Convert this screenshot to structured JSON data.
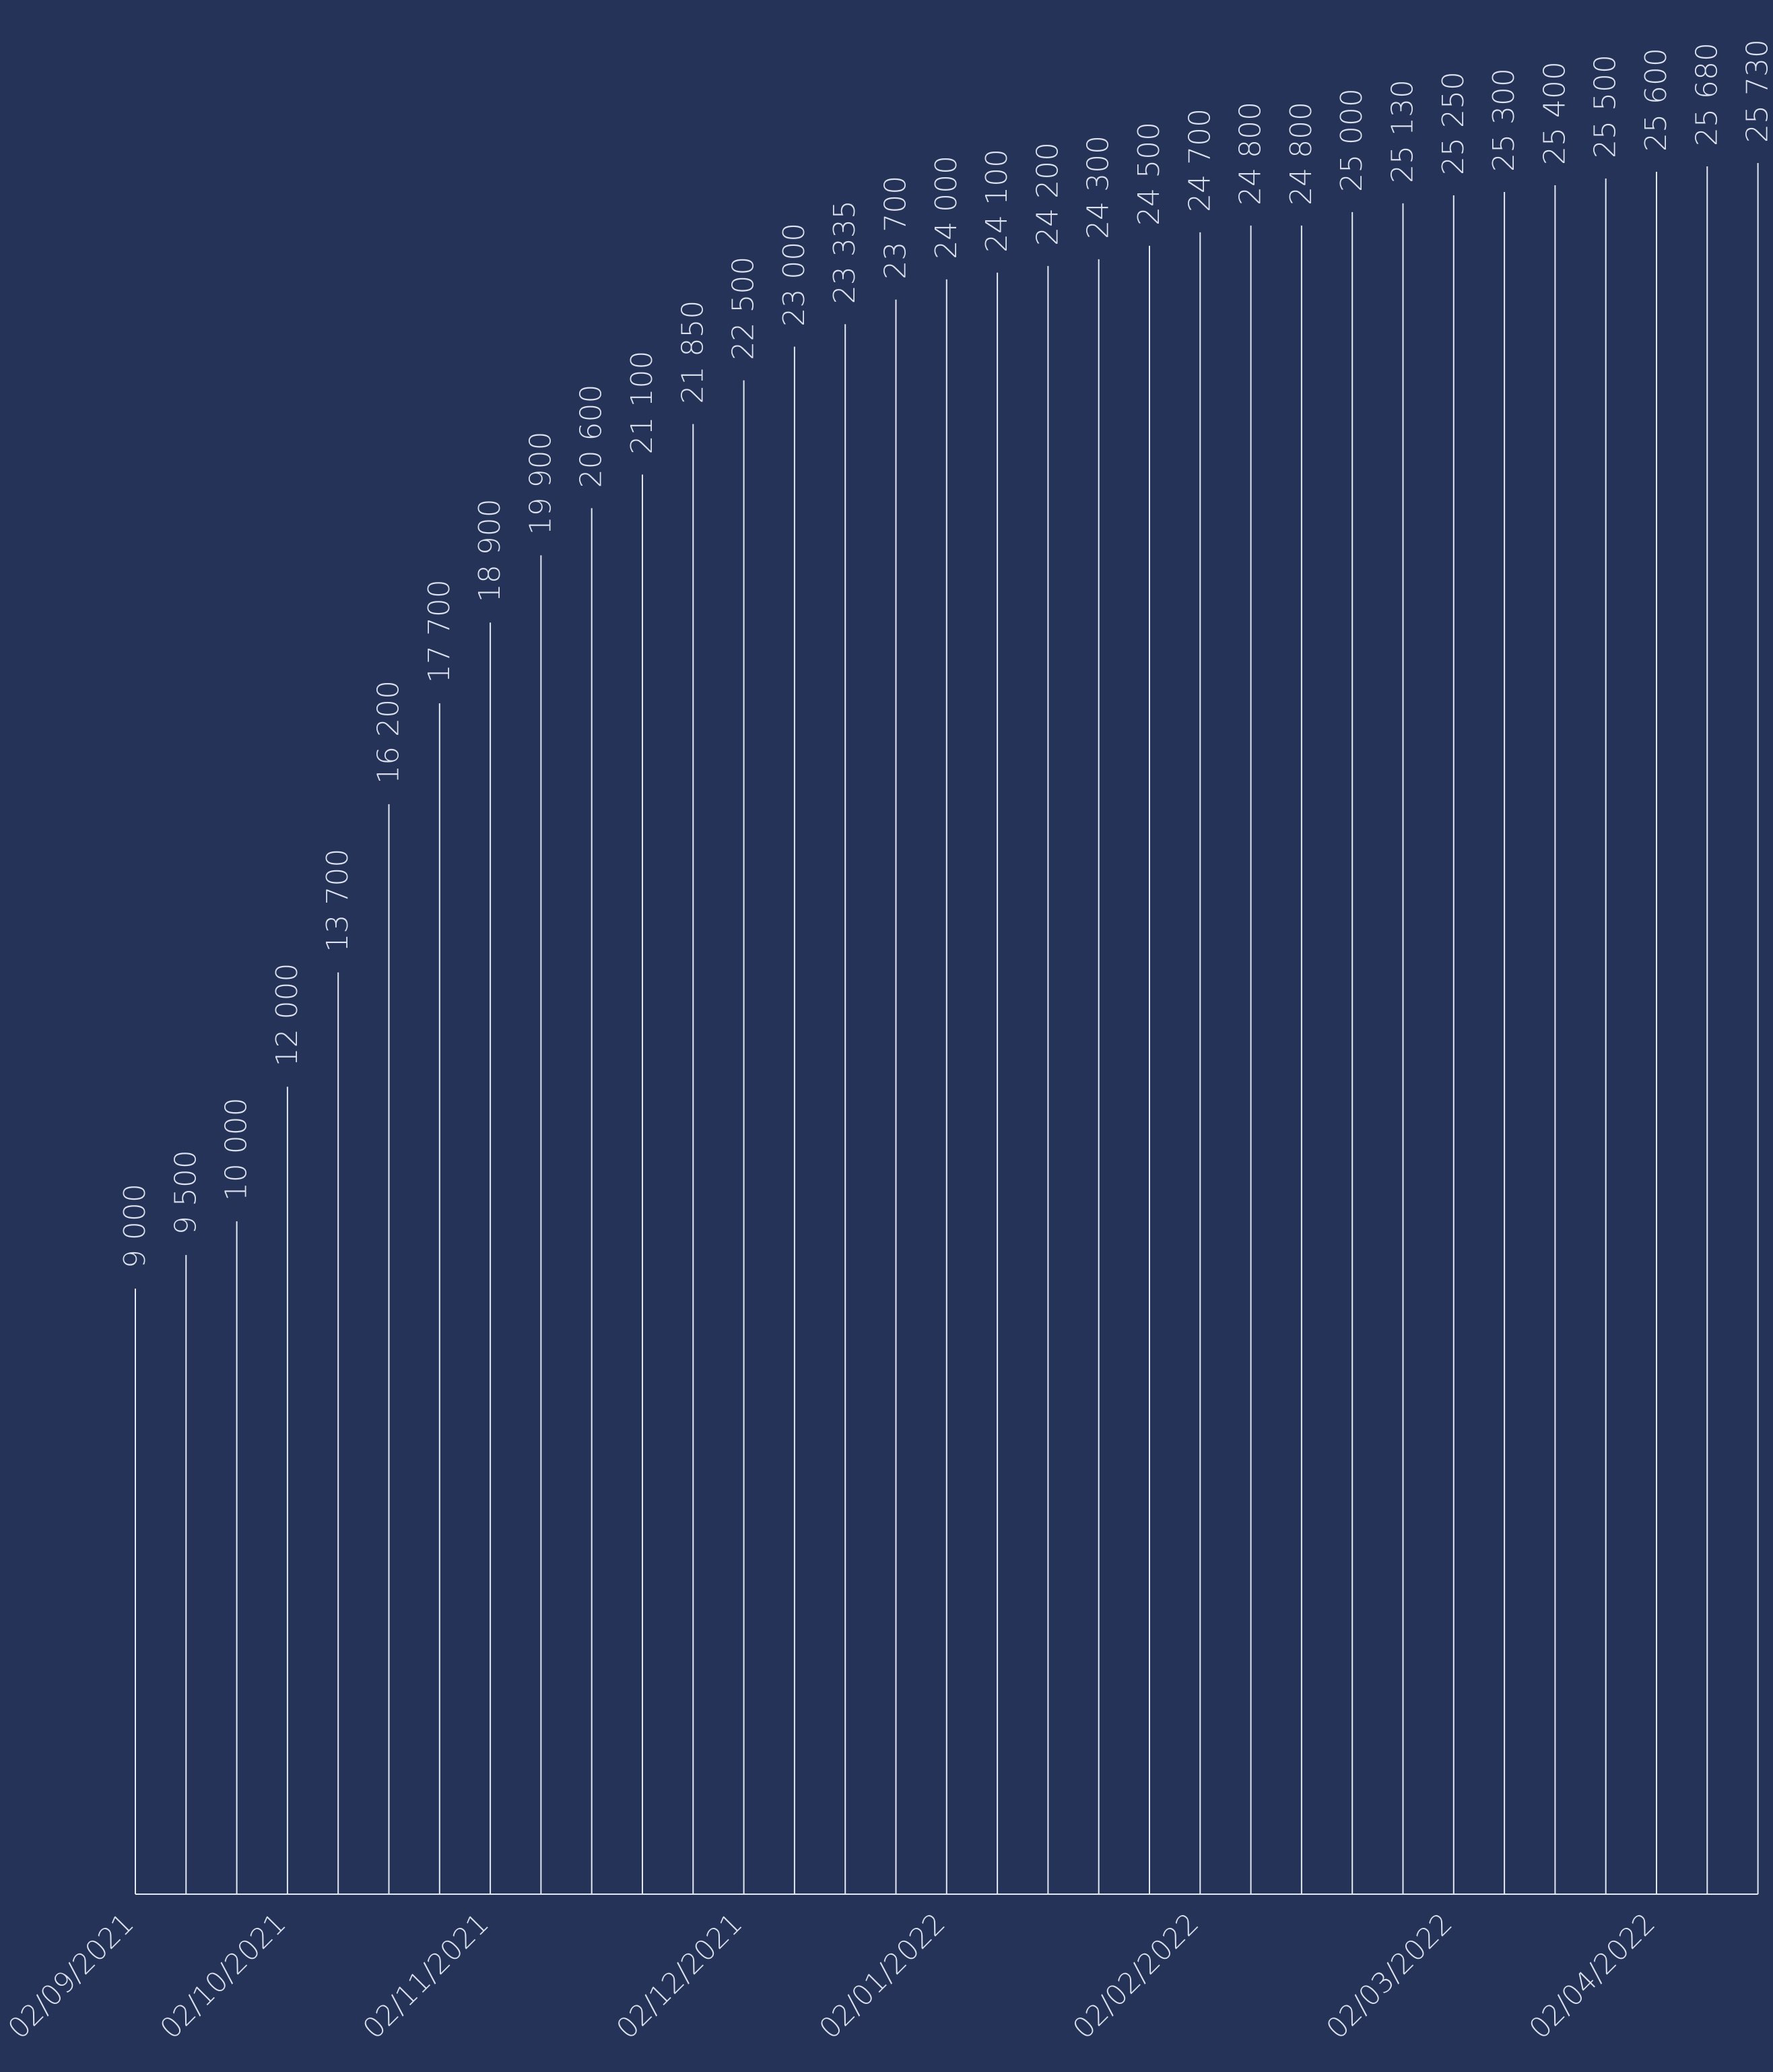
{
  "colors": {
    "background": "#263358",
    "stem": "#e4e8f2",
    "text": "#dde2ef"
  },
  "chart_data": {
    "type": "bar",
    "style": "vertical stems with rotated value labels",
    "title": "",
    "xlabel": "",
    "ylabel": "",
    "grid": false,
    "legend": "none",
    "x_tick_labels": [
      "02/09/2021",
      "02/10/2021",
      "02/11/2021",
      "02/12/2021",
      "02/01/2022",
      "02/02/2022",
      "02/03/2022",
      "02/04/2022"
    ],
    "x_tick_indices": [
      0,
      3,
      7,
      12,
      16,
      21,
      26,
      30
    ],
    "values": [
      9000,
      9500,
      10000,
      12000,
      13700,
      16200,
      17700,
      18900,
      19900,
      20600,
      21100,
      21850,
      22500,
      23000,
      23335,
      23700,
      24000,
      24100,
      24200,
      24300,
      24500,
      24700,
      24800,
      24800,
      25000,
      25130,
      25250,
      25300,
      25400,
      25500,
      25600,
      25680,
      25730
    ],
    "value_labels": [
      "9 000",
      "9 500",
      "10 000",
      "12 000",
      "13 700",
      "16 200",
      "17 700",
      "18 900",
      "19 900",
      "20 600",
      "21 100",
      "21 850",
      "22 500",
      "23 000",
      "23 335",
      "23 700",
      "24 000",
      "24 100",
      "24 200",
      "24 300",
      "24 500",
      "24 700",
      "24 800",
      "24 800",
      "25 000",
      "25 130",
      "25 250",
      "25 300",
      "25 400",
      "25 500",
      "25 600",
      "25 680",
      "25 730"
    ],
    "ylim": [
      0,
      26000
    ]
  }
}
